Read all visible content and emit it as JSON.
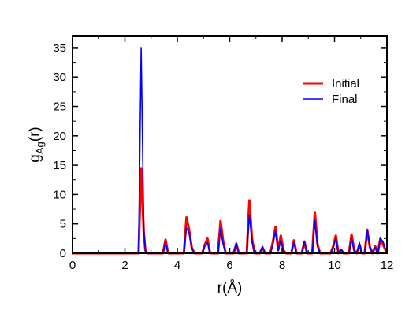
{
  "chart_data": {
    "type": "line",
    "xlabel": "r(Å)",
    "ylabel_main": "g",
    "ylabel_sub": "Ag",
    "ylabel_tail": "(r)",
    "xlim": [
      0,
      12
    ],
    "ylim": [
      0,
      37
    ],
    "xticks": [
      0,
      2,
      4,
      6,
      8,
      10,
      12
    ],
    "yticks": [
      0,
      5,
      10,
      15,
      20,
      25,
      30,
      35
    ],
    "grid": false,
    "legend_position": "top-right",
    "series": [
      {
        "name": "Initial",
        "color": "#ff0000",
        "x": [
          0,
          2.52,
          2.62,
          2.72,
          2.78,
          2.85,
          3.45,
          3.55,
          3.65,
          4.25,
          4.35,
          4.45,
          4.55,
          4.65,
          4.95,
          5.05,
          5.15,
          5.25,
          5.55,
          5.65,
          5.75,
          5.85,
          6.15,
          6.25,
          6.35,
          6.65,
          6.75,
          6.85,
          6.95,
          7.15,
          7.25,
          7.35,
          7.55,
          7.65,
          7.75,
          7.85,
          7.95,
          8.05,
          8.15,
          8.35,
          8.45,
          8.55,
          8.75,
          8.85,
          8.95,
          9.15,
          9.25,
          9.35,
          9.45,
          9.55,
          9.85,
          9.95,
          10.05,
          10.15,
          10.25,
          10.35,
          10.55,
          10.65,
          10.75,
          10.85,
          10.95,
          11.05,
          11.15,
          11.25,
          11.35,
          11.45,
          11.55,
          11.65,
          11.75,
          11.85,
          12
        ],
        "y": [
          0,
          0,
          14.5,
          3.5,
          0.5,
          0,
          0,
          2.3,
          0,
          0,
          6.1,
          4.0,
          1.0,
          0,
          0,
          1.5,
          2.5,
          0,
          0,
          5.5,
          2.0,
          0,
          0,
          1.6,
          0,
          0,
          9.0,
          2.5,
          0,
          0,
          1.0,
          0,
          0,
          2.0,
          4.5,
          0.5,
          3.0,
          0.5,
          0,
          0,
          2.2,
          0,
          0,
          2.0,
          0,
          0,
          7.0,
          1.5,
          0,
          0,
          0,
          1.2,
          3.0,
          0,
          0.6,
          0,
          0,
          3.2,
          0.5,
          0,
          1.5,
          0,
          0,
          4.0,
          1.0,
          0,
          1.2,
          0,
          2.5,
          1.5,
          0
        ]
      },
      {
        "name": "Final",
        "color": "#0000ff",
        "x": [
          0,
          2.52,
          2.62,
          2.72,
          2.78,
          2.85,
          3.45,
          3.55,
          3.65,
          4.25,
          4.35,
          4.45,
          4.55,
          4.65,
          4.95,
          5.05,
          5.15,
          5.25,
          5.55,
          5.65,
          5.75,
          5.85,
          6.15,
          6.25,
          6.35,
          6.65,
          6.75,
          6.85,
          6.95,
          7.15,
          7.25,
          7.35,
          7.55,
          7.65,
          7.75,
          7.85,
          7.95,
          8.05,
          8.15,
          8.35,
          8.45,
          8.55,
          8.75,
          8.85,
          8.95,
          9.15,
          9.25,
          9.35,
          9.45,
          9.55,
          9.85,
          9.95,
          10.05,
          10.15,
          10.25,
          10.35,
          10.55,
          10.65,
          10.75,
          10.85,
          10.95,
          11.05,
          11.15,
          11.25,
          11.35,
          11.45,
          11.55,
          11.65,
          11.75,
          11.85,
          12
        ],
        "y": [
          0,
          0,
          35.0,
          3.8,
          0.5,
          0,
          0,
          1.8,
          0,
          0,
          4.3,
          3.5,
          1.0,
          0,
          0,
          1.2,
          1.8,
          0,
          0,
          4.2,
          1.5,
          0,
          0,
          1.8,
          0,
          0,
          6.5,
          2.0,
          0,
          0,
          1.2,
          0,
          0,
          1.5,
          3.8,
          0.5,
          2.2,
          0.5,
          0,
          0,
          1.8,
          0,
          0,
          2.0,
          0,
          0,
          5.5,
          1.2,
          0,
          0,
          0,
          1.0,
          2.5,
          0,
          0.7,
          0,
          0,
          2.5,
          0.5,
          0,
          1.8,
          0,
          0,
          3.8,
          1.2,
          0,
          1.0,
          0,
          2.5,
          2.0,
          0
        ]
      }
    ]
  }
}
